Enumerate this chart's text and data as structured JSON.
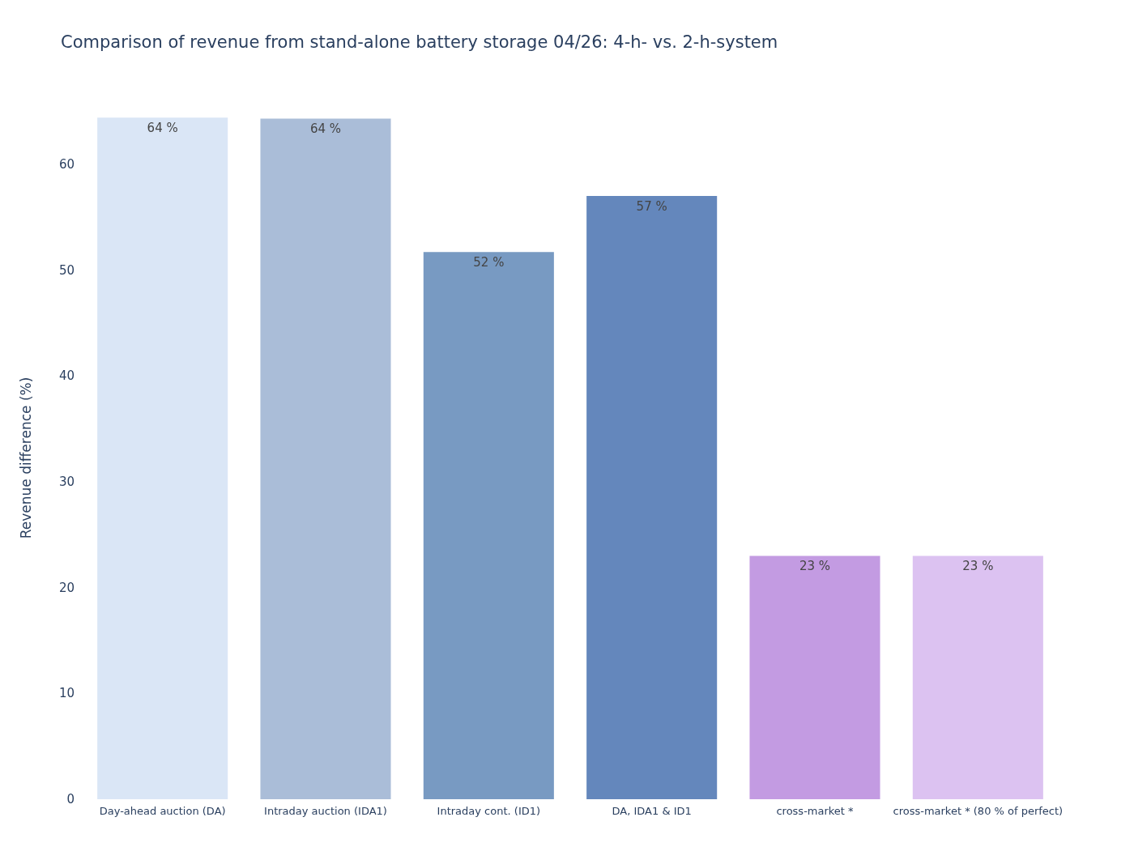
{
  "chart_data": {
    "type": "bar",
    "title": "Comparison of revenue from stand-alone battery storage 04/26: 4-h- vs. 2-h-system",
    "ylabel": "Revenue difference (%)",
    "categories": [
      "Day-ahead auction (DA)",
      "Intraday auction (IDA1)",
      "Intraday cont. (ID1)",
      "DA, IDA1 & ID1",
      "cross-market *",
      "cross-market * (80 % of perfect)"
    ],
    "values": [
      64.4,
      64.3,
      51.7,
      57.0,
      23.0,
      23.0
    ],
    "value_labels": [
      "64 %",
      "64 %",
      "52 %",
      "57 %",
      "23 %",
      "23 %"
    ],
    "colors": [
      "#dae6f6",
      "#aabdd8",
      "#789ac2",
      "#6487bc",
      "#c39be2",
      "#dcc2f1"
    ],
    "ylim": [
      0,
      64.5
    ],
    "yticks": [
      0,
      10,
      20,
      30,
      40,
      50,
      60
    ],
    "grid": false
  }
}
